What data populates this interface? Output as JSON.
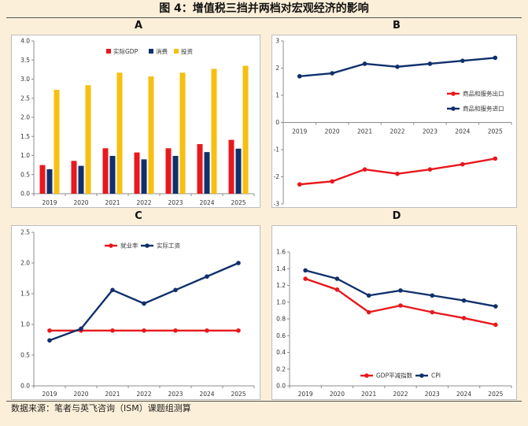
{
  "figure_title": "图 4：增值税三挡并两档对宏观经济的影响",
  "source": "数据来源：笔者与英飞咨询（ISM）课题组测算",
  "chart_data": [
    {
      "id": "A",
      "panel_label": "A",
      "type": "bar",
      "categories": [
        "2019",
        "2020",
        "2021",
        "2022",
        "2023",
        "2024",
        "2025"
      ],
      "ylim": [
        0,
        4.0
      ],
      "yticks": [
        "0.0",
        "0.5",
        "1.0",
        "1.5",
        "2.0",
        "2.5",
        "3.0",
        "3.5",
        "4.0"
      ],
      "legend_position": "top-center",
      "grid": false,
      "series": [
        {
          "name": "实际GDP",
          "color": "#e8181c",
          "values": [
            0.75,
            0.86,
            1.19,
            1.08,
            1.19,
            1.3,
            1.41
          ]
        },
        {
          "name": "消费",
          "color": "#10306b",
          "values": [
            0.64,
            0.73,
            0.99,
            0.9,
            0.99,
            1.09,
            1.18
          ]
        },
        {
          "name": "投资",
          "color": "#f7bf0f",
          "values": [
            2.72,
            2.84,
            3.17,
            3.07,
            3.17,
            3.27,
            3.35
          ]
        }
      ]
    },
    {
      "id": "B",
      "panel_label": "B",
      "type": "line",
      "categories": [
        "2019",
        "2020",
        "2021",
        "2022",
        "2023",
        "2024",
        "2025"
      ],
      "ylim": [
        -3,
        3
      ],
      "yticks": [
        "-3",
        "-2",
        "-1",
        "0",
        "1",
        "2",
        "3"
      ],
      "category_axis_at": 0,
      "legend_position": "right-middle",
      "grid": false,
      "series": [
        {
          "name": "商品和服务出口",
          "color": "#e8181c",
          "values": [
            -2.28,
            -2.17,
            -1.73,
            -1.89,
            -1.73,
            -1.54,
            -1.33
          ]
        },
        {
          "name": "商品和服务进口",
          "color": "#10306b",
          "values": [
            1.7,
            1.81,
            2.16,
            2.05,
            2.16,
            2.27,
            2.38
          ]
        }
      ]
    },
    {
      "id": "C",
      "panel_label": "C",
      "type": "line",
      "categories": [
        "2019",
        "2020",
        "2021",
        "2022",
        "2023",
        "2024",
        "2025"
      ],
      "ylim": [
        0,
        2.5
      ],
      "yticks": [
        "0.0",
        "0.5",
        "1.0",
        "1.5",
        "2.0",
        "2.5"
      ],
      "legend_position": "top-center",
      "grid": false,
      "series": [
        {
          "name": "就业率",
          "color": "#e8181c",
          "values": [
            0.9,
            0.9,
            0.9,
            0.9,
            0.9,
            0.9,
            0.9
          ]
        },
        {
          "name": "实际工资",
          "color": "#10306b",
          "values": [
            0.74,
            0.93,
            1.56,
            1.34,
            1.56,
            1.78,
            2.0
          ]
        }
      ]
    },
    {
      "id": "D",
      "panel_label": "D",
      "type": "line",
      "categories": [
        "2019",
        "2020",
        "2021",
        "2022",
        "2023",
        "2024",
        "2025"
      ],
      "ylim": [
        0,
        1.6
      ],
      "yticks": [
        "0.0",
        "0.2",
        "0.4",
        "0.6",
        "0.8",
        "1.0",
        "1.2",
        "1.4",
        "1.6"
      ],
      "legend_position": "bottom-center",
      "grid": false,
      "series": [
        {
          "name": "GDP平减指数",
          "color": "#e8181c",
          "values": [
            1.28,
            1.15,
            0.88,
            0.96,
            0.88,
            0.81,
            0.73
          ]
        },
        {
          "name": "CPI",
          "color": "#10306b",
          "values": [
            1.38,
            1.28,
            1.08,
            1.14,
            1.08,
            1.02,
            0.95
          ]
        }
      ]
    }
  ]
}
